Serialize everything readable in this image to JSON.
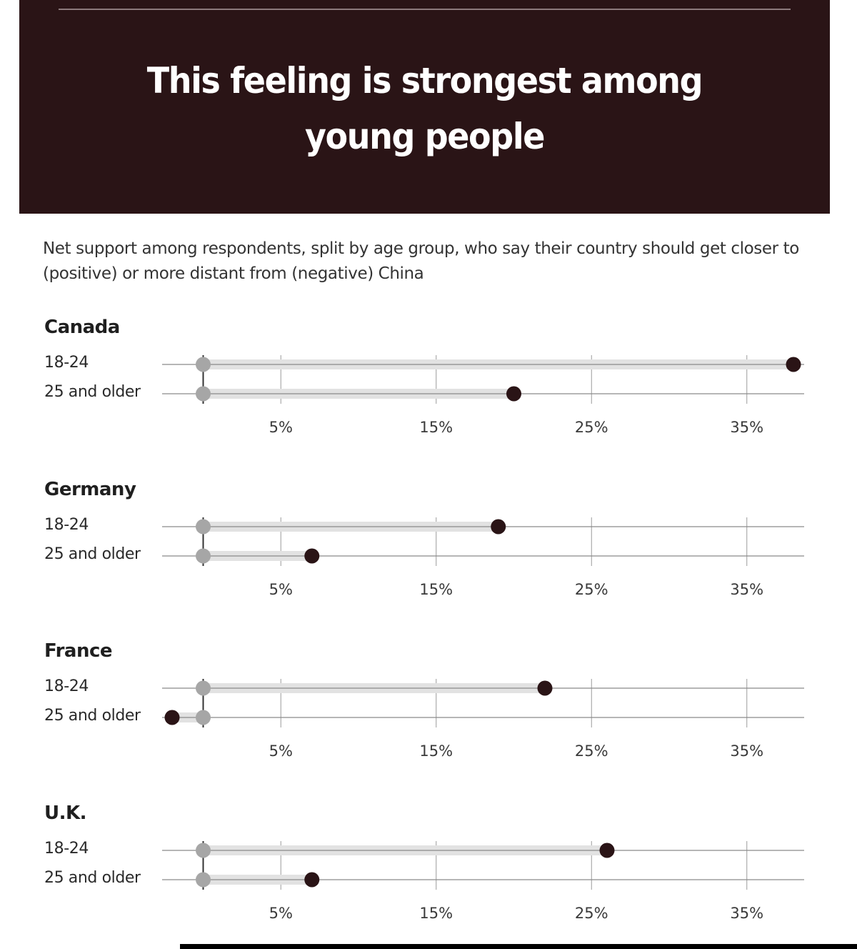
{
  "header": {
    "title_line1": "This feeling is strongest among",
    "title_line2": "young people"
  },
  "subtitle": "Net support among respondents, split by age group, who say their country should get closer to (positive) or more distant from (negative) China",
  "colors": {
    "header_bg": "#2a1416",
    "dot_dark": "#2a1416",
    "dot_zero": "#a6a6a6",
    "bar_fill": "#e2e2e2",
    "grid": "#9a9a9a"
  },
  "chart_data": [
    {
      "type": "dot",
      "title": "Canada",
      "categories": [
        "18-24",
        "25 and older"
      ],
      "values": [
        38,
        20
      ],
      "xlim": [
        -3,
        39
      ],
      "xticks": [
        5,
        15,
        25,
        35
      ],
      "xtick_labels": [
        "5%",
        "15%",
        "25%",
        "35%"
      ],
      "baseline": 0,
      "unit": "%"
    },
    {
      "type": "dot",
      "title": "Germany",
      "categories": [
        "18-24",
        "25 and older"
      ],
      "values": [
        19,
        7
      ],
      "xlim": [
        -3,
        39
      ],
      "xticks": [
        5,
        15,
        25,
        35
      ],
      "xtick_labels": [
        "5%",
        "15%",
        "25%",
        "35%"
      ],
      "baseline": 0,
      "unit": "%"
    },
    {
      "type": "dot",
      "title": "France",
      "categories": [
        "18-24",
        "25 and older"
      ],
      "values": [
        22,
        -2
      ],
      "xlim": [
        -3,
        39
      ],
      "xticks": [
        5,
        15,
        25,
        35
      ],
      "xtick_labels": [
        "5%",
        "15%",
        "25%",
        "35%"
      ],
      "baseline": 0,
      "unit": "%"
    },
    {
      "type": "dot",
      "title": "U.K.",
      "categories": [
        "18-24",
        "25 and older"
      ],
      "values": [
        26,
        7
      ],
      "xlim": [
        -3,
        39
      ],
      "xticks": [
        5,
        15,
        25,
        35
      ],
      "xtick_labels": [
        "5%",
        "15%",
        "25%",
        "35%"
      ],
      "baseline": 0,
      "unit": "%"
    }
  ]
}
